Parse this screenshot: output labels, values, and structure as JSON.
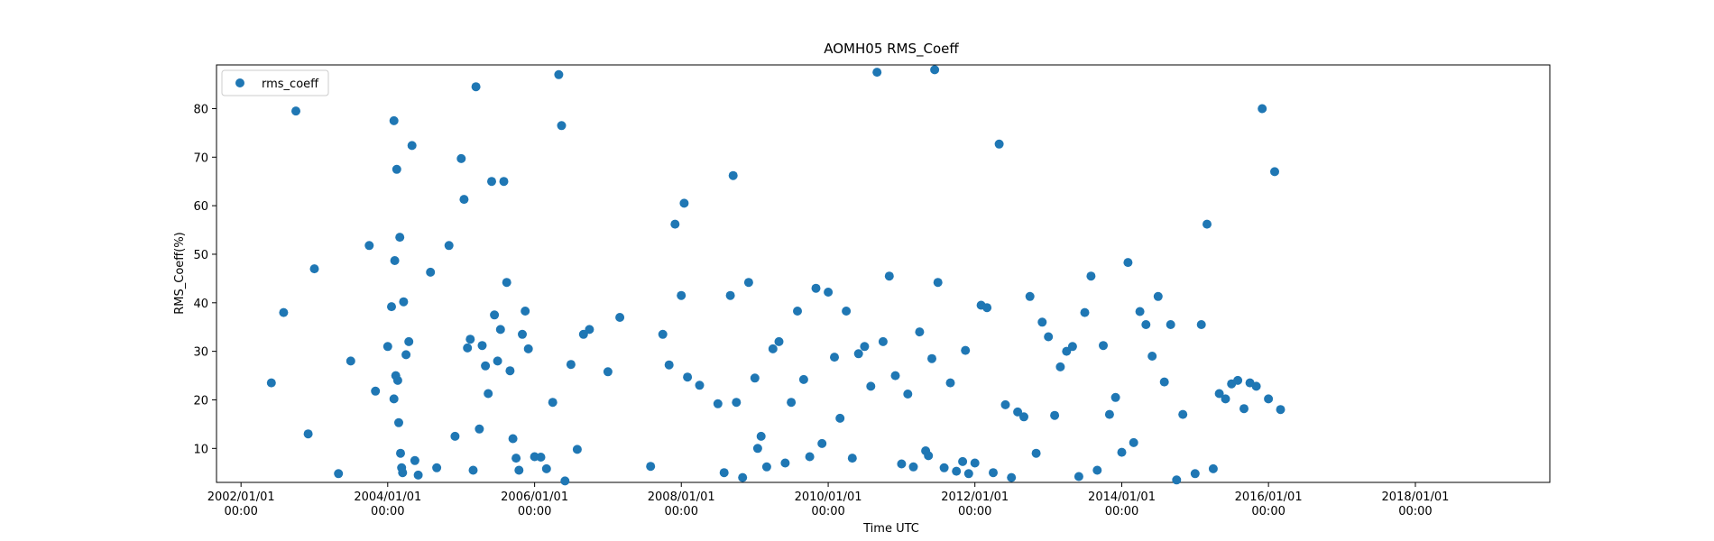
{
  "chart_data": {
    "type": "scatter",
    "title": "AOMH05 RMS_Coeff",
    "xlabel": "Time UTC",
    "ylabel": "RMS_Coeff(%)",
    "xlim": [
      "2001-09-01",
      "2019-11-01"
    ],
    "ylim": [
      3,
      89
    ],
    "x_ticks": [
      {
        "date": "2002-01-01",
        "label": [
          "2002/01/01",
          "00:00"
        ]
      },
      {
        "date": "2004-01-01",
        "label": [
          "2004/01/01",
          "00:00"
        ]
      },
      {
        "date": "2006-01-01",
        "label": [
          "2006/01/01",
          "00:00"
        ]
      },
      {
        "date": "2008-01-01",
        "label": [
          "2008/01/01",
          "00:00"
        ]
      },
      {
        "date": "2010-01-01",
        "label": [
          "2010/01/01",
          "00:00"
        ]
      },
      {
        "date": "2012-01-01",
        "label": [
          "2012/01/01",
          "00:00"
        ]
      },
      {
        "date": "2014-01-01",
        "label": [
          "2014/01/01",
          "00:00"
        ]
      },
      {
        "date": "2016-01-01",
        "label": [
          "2016/01/01",
          "00:00"
        ]
      },
      {
        "date": "2018-01-01",
        "label": [
          "2018/01/01",
          "00:00"
        ]
      }
    ],
    "y_ticks": [
      10,
      20,
      30,
      40,
      50,
      60,
      70,
      80
    ],
    "grid": false,
    "legend": {
      "position": "top-left",
      "entries": [
        "rms_coeff"
      ]
    },
    "series": [
      {
        "name": "rms_coeff",
        "color": "#1f77b4",
        "points": [
          [
            "2002-06-01",
            23.5
          ],
          [
            "2002-08-01",
            38.0
          ],
          [
            "2002-10-01",
            79.5
          ],
          [
            "2002-12-01",
            13.0
          ],
          [
            "2003-01-01",
            47.0
          ],
          [
            "2003-05-01",
            4.8
          ],
          [
            "2003-07-01",
            28.0
          ],
          [
            "2003-10-01",
            51.8
          ],
          [
            "2003-11-01",
            21.8
          ],
          [
            "2004-01-01",
            31.0
          ],
          [
            "2004-02-01",
            77.5
          ],
          [
            "2004-02-15",
            67.5
          ],
          [
            "2004-03-01",
            53.5
          ],
          [
            "2004-01-20",
            39.2
          ],
          [
            "2004-02-05",
            48.7
          ],
          [
            "2004-02-10",
            25.0
          ],
          [
            "2004-02-20",
            24.0
          ],
          [
            "2004-02-25",
            15.3
          ],
          [
            "2004-03-05",
            9.0
          ],
          [
            "2004-03-10",
            6.0
          ],
          [
            "2004-03-15",
            5.0
          ],
          [
            "2004-02-01",
            20.2
          ],
          [
            "2004-03-20",
            40.2
          ],
          [
            "2004-04-01",
            29.3
          ],
          [
            "2004-04-15",
            32.0
          ],
          [
            "2004-05-01",
            72.4
          ],
          [
            "2004-05-15",
            7.5
          ],
          [
            "2004-06-01",
            4.5
          ],
          [
            "2004-08-01",
            46.3
          ],
          [
            "2004-09-01",
            6.0
          ],
          [
            "2004-11-01",
            51.8
          ],
          [
            "2004-12-01",
            12.5
          ],
          [
            "2005-01-01",
            69.7
          ],
          [
            "2005-01-15",
            61.3
          ],
          [
            "2005-02-01",
            30.7
          ],
          [
            "2005-02-15",
            32.5
          ],
          [
            "2005-03-01",
            5.5
          ],
          [
            "2005-03-15",
            84.5
          ],
          [
            "2005-04-01",
            14.0
          ],
          [
            "2005-04-15",
            31.2
          ],
          [
            "2005-05-01",
            27.0
          ],
          [
            "2005-05-15",
            21.3
          ],
          [
            "2005-06-01",
            65.0
          ],
          [
            "2005-06-15",
            37.5
          ],
          [
            "2005-07-01",
            28.0
          ],
          [
            "2005-07-15",
            34.5
          ],
          [
            "2005-08-01",
            65.0
          ],
          [
            "2005-08-15",
            44.2
          ],
          [
            "2005-09-01",
            26.0
          ],
          [
            "2005-09-15",
            12.0
          ],
          [
            "2005-10-01",
            8.0
          ],
          [
            "2005-10-15",
            5.5
          ],
          [
            "2005-11-01",
            33.5
          ],
          [
            "2005-11-15",
            38.3
          ],
          [
            "2005-12-01",
            30.5
          ],
          [
            "2006-01-01",
            8.3
          ],
          [
            "2006-02-01",
            8.2
          ],
          [
            "2006-03-01",
            5.8
          ],
          [
            "2006-04-01",
            19.5
          ],
          [
            "2006-05-01",
            87.0
          ],
          [
            "2006-05-15",
            76.5
          ],
          [
            "2006-06-01",
            3.3
          ],
          [
            "2006-07-01",
            27.3
          ],
          [
            "2006-08-01",
            9.8
          ],
          [
            "2006-09-01",
            33.5
          ],
          [
            "2006-10-01",
            34.5
          ],
          [
            "2007-01-01",
            25.8
          ],
          [
            "2007-03-01",
            37.0
          ],
          [
            "2007-08-01",
            6.3
          ],
          [
            "2007-10-01",
            33.5
          ],
          [
            "2007-11-01",
            27.2
          ],
          [
            "2007-12-01",
            56.2
          ],
          [
            "2008-01-01",
            41.5
          ],
          [
            "2008-01-15",
            60.5
          ],
          [
            "2008-02-01",
            24.7
          ],
          [
            "2008-04-01",
            23.0
          ],
          [
            "2008-07-01",
            19.2
          ],
          [
            "2008-08-01",
            5.0
          ],
          [
            "2008-09-01",
            41.5
          ],
          [
            "2008-09-15",
            66.2
          ],
          [
            "2008-10-01",
            19.5
          ],
          [
            "2008-11-01",
            4.0
          ],
          [
            "2008-12-01",
            44.2
          ],
          [
            "2009-01-01",
            24.5
          ],
          [
            "2009-01-15",
            10.0
          ],
          [
            "2009-02-01",
            12.5
          ],
          [
            "2009-03-01",
            6.2
          ],
          [
            "2009-04-01",
            30.5
          ],
          [
            "2009-05-01",
            32.0
          ],
          [
            "2009-06-01",
            7.0
          ],
          [
            "2009-07-01",
            19.5
          ],
          [
            "2009-08-01",
            38.3
          ],
          [
            "2009-09-01",
            24.2
          ],
          [
            "2009-10-01",
            8.3
          ],
          [
            "2009-11-01",
            43.0
          ],
          [
            "2009-12-01",
            11.0
          ],
          [
            "2010-01-01",
            42.2
          ],
          [
            "2010-02-01",
            28.8
          ],
          [
            "2010-03-01",
            16.2
          ],
          [
            "2010-04-01",
            38.3
          ],
          [
            "2010-05-01",
            8.0
          ],
          [
            "2010-06-01",
            29.5
          ],
          [
            "2010-07-01",
            31.0
          ],
          [
            "2010-08-01",
            22.8
          ],
          [
            "2010-09-01",
            87.5
          ],
          [
            "2010-10-01",
            32.0
          ],
          [
            "2010-11-01",
            45.5
          ],
          [
            "2010-12-01",
            25.0
          ],
          [
            "2011-01-01",
            6.8
          ],
          [
            "2011-02-01",
            21.2
          ],
          [
            "2011-03-01",
            6.2
          ],
          [
            "2011-04-01",
            34.0
          ],
          [
            "2011-05-01",
            9.5
          ],
          [
            "2011-05-15",
            8.5
          ],
          [
            "2011-06-01",
            28.5
          ],
          [
            "2011-06-15",
            88.0
          ],
          [
            "2011-07-01",
            44.2
          ],
          [
            "2011-08-01",
            6.0
          ],
          [
            "2011-09-01",
            23.5
          ],
          [
            "2011-10-01",
            5.3
          ],
          [
            "2011-11-01",
            7.3
          ],
          [
            "2011-11-15",
            30.2
          ],
          [
            "2011-12-01",
            4.8
          ],
          [
            "2012-01-01",
            7.0
          ],
          [
            "2012-02-01",
            39.5
          ],
          [
            "2012-03-01",
            39.0
          ],
          [
            "2012-04-01",
            5.0
          ],
          [
            "2012-05-01",
            72.7
          ],
          [
            "2012-06-01",
            19.0
          ],
          [
            "2012-07-01",
            4.0
          ],
          [
            "2012-08-01",
            17.5
          ],
          [
            "2012-09-01",
            16.5
          ],
          [
            "2012-10-01",
            41.3
          ],
          [
            "2012-11-01",
            9.0
          ],
          [
            "2012-12-01",
            36.0
          ],
          [
            "2013-01-01",
            33.0
          ],
          [
            "2013-02-01",
            16.8
          ],
          [
            "2013-03-01",
            26.8
          ],
          [
            "2013-04-01",
            30.0
          ],
          [
            "2013-05-01",
            31.0
          ],
          [
            "2013-06-01",
            4.2
          ],
          [
            "2013-07-01",
            38.0
          ],
          [
            "2013-08-01",
            45.5
          ],
          [
            "2013-09-01",
            5.5
          ],
          [
            "2013-10-01",
            31.2
          ],
          [
            "2013-11-01",
            17.0
          ],
          [
            "2013-12-01",
            20.5
          ],
          [
            "2014-01-01",
            9.2
          ],
          [
            "2014-02-01",
            48.3
          ],
          [
            "2014-03-01",
            11.2
          ],
          [
            "2014-04-01",
            38.2
          ],
          [
            "2014-05-01",
            35.5
          ],
          [
            "2014-06-01",
            29.0
          ],
          [
            "2014-07-01",
            41.3
          ],
          [
            "2014-08-01",
            23.7
          ],
          [
            "2014-09-01",
            35.5
          ],
          [
            "2014-10-01",
            3.5
          ],
          [
            "2014-11-01",
            17.0
          ],
          [
            "2015-01-01",
            4.8
          ],
          [
            "2015-02-01",
            35.5
          ],
          [
            "2015-03-01",
            56.2
          ],
          [
            "2015-04-01",
            5.8
          ],
          [
            "2015-05-01",
            21.3
          ],
          [
            "2015-06-01",
            20.2
          ],
          [
            "2015-07-01",
            23.3
          ],
          [
            "2015-08-01",
            24.0
          ],
          [
            "2015-09-01",
            18.2
          ],
          [
            "2015-10-01",
            23.5
          ],
          [
            "2015-11-01",
            22.8
          ],
          [
            "2015-12-01",
            80.0
          ],
          [
            "2016-01-01",
            20.2
          ],
          [
            "2016-02-01",
            67.0
          ],
          [
            "2016-03-01",
            18.0
          ]
        ]
      }
    ]
  },
  "legend": {
    "label": "rms_coeff"
  }
}
